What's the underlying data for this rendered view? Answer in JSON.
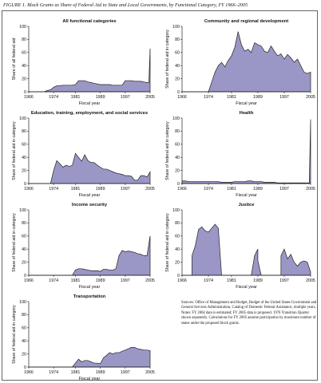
{
  "figure": {
    "title": "FIGURE 1. Block Grants as Share of Federal Aid to State and Local Governments, by Functional Category, FY 1966–2005",
    "note": "Sources: Office of Management and Budget, Budget of the United States Government and General Services Administration, Catalog of Domestic Federal Assistance, multiple years. Notes: FY 2004 data is estimated; FY 2005 data is proposed. 1976 Transition Quarter shown separately. Calculations for FY 2005 assume participation by maximum number of states under the proposed block grants."
  },
  "style": {
    "fill": "#9a97c6",
    "stroke": "#222222"
  },
  "chart_data": [
    {
      "type": "area",
      "title": "All functional categories",
      "xlabel": "Fiscal year",
      "ylabel": "Share of all federal aid",
      "xlim": [
        1966,
        2005
      ],
      "ylim": [
        0,
        100
      ],
      "xticks": [
        1966,
        1974,
        1981,
        1989,
        1997,
        2005
      ],
      "yticks": [
        0,
        20,
        40,
        60,
        80,
        100
      ],
      "x": [
        1966,
        1967,
        1968,
        1969,
        1970,
        1971,
        1972,
        1973,
        1974,
        1975,
        1976,
        1977,
        1978,
        1979,
        1980,
        1981,
        1982,
        1983,
        1984,
        1985,
        1986,
        1987,
        1988,
        1989,
        1990,
        1991,
        1992,
        1993,
        1994,
        1995,
        1996,
        1997,
        1998,
        1999,
        2000,
        2001,
        2002,
        2003,
        2004,
        2004.6,
        2005
      ],
      "values": [
        0,
        0,
        0,
        0,
        0,
        0,
        2,
        3,
        7,
        9,
        9,
        10,
        10,
        10,
        10,
        11,
        17,
        17,
        17,
        15,
        14,
        13,
        12,
        11,
        11,
        11,
        11,
        10,
        10,
        10,
        10,
        17,
        17,
        17,
        16,
        16,
        16,
        15,
        14,
        14,
        66
      ]
    },
    {
      "type": "area",
      "title": "Community and regional development",
      "xlabel": "Fiscal year",
      "ylabel": "Share of federal aid in category",
      "xlim": [
        1966,
        2005
      ],
      "ylim": [
        0,
        100
      ],
      "xticks": [
        1966,
        1974,
        1981,
        1989,
        1997,
        2005
      ],
      "yticks": [
        0,
        20,
        40,
        60,
        80,
        100
      ],
      "x": [
        1966,
        1967,
        1968,
        1969,
        1970,
        1971,
        1972,
        1973,
        1974,
        1975,
        1976,
        1977,
        1978,
        1979,
        1980,
        1981,
        1982,
        1983,
        1984,
        1985,
        1986,
        1987,
        1988,
        1989,
        1990,
        1991,
        1992,
        1993,
        1994,
        1995,
        1996,
        1997,
        1998,
        1999,
        2000,
        2001,
        2002,
        2003,
        2004,
        2005
      ],
      "values": [
        0,
        0,
        0,
        0,
        0,
        0,
        0,
        0,
        0,
        15,
        30,
        40,
        45,
        38,
        48,
        55,
        68,
        92,
        72,
        62,
        65,
        60,
        75,
        72,
        70,
        62,
        60,
        70,
        62,
        55,
        58,
        50,
        57,
        52,
        45,
        50,
        40,
        30,
        28,
        30
      ]
    },
    {
      "type": "area",
      "title": "Education, training, employment, and social services",
      "xlabel": "Fiscal year",
      "ylabel": "Share of federal aid in category",
      "xlim": [
        1966,
        2005
      ],
      "ylim": [
        0,
        100
      ],
      "xticks": [
        1966,
        1974,
        1981,
        1989,
        1997,
        2005
      ],
      "yticks": [
        0,
        20,
        40,
        60,
        80,
        100
      ],
      "x": [
        1966,
        1967,
        1968,
        1969,
        1970,
        1971,
        1972,
        1973,
        1974,
        1975,
        1976,
        1977,
        1978,
        1979,
        1980,
        1981,
        1982,
        1983,
        1984,
        1985,
        1986,
        1987,
        1988,
        1989,
        1990,
        1991,
        1992,
        1993,
        1994,
        1995,
        1996,
        1997,
        1998,
        1999,
        2000,
        2001,
        2002,
        2003,
        2004,
        2005
      ],
      "values": [
        0,
        0,
        0,
        0,
        0,
        0,
        0,
        0,
        20,
        35,
        30,
        25,
        28,
        26,
        28,
        46,
        40,
        34,
        44,
        35,
        32,
        32,
        28,
        25,
        22,
        22,
        20,
        18,
        16,
        15,
        14,
        12,
        12,
        11,
        5,
        5,
        12,
        12,
        10,
        18
      ]
    },
    {
      "type": "area",
      "title": "Health",
      "xlabel": "Fiscal year",
      "ylabel": "Share of federal aid in category",
      "xlim": [
        1966,
        2005
      ],
      "ylim": [
        0,
        100
      ],
      "xticks": [
        1966,
        1974,
        1981,
        1989,
        1997,
        2005
      ],
      "yticks": [
        0,
        20,
        40,
        60,
        80,
        100
      ],
      "x": [
        1966,
        1967,
        1968,
        1969,
        1970,
        1971,
        1972,
        1973,
        1974,
        1975,
        1976,
        1977,
        1978,
        1979,
        1980,
        1981,
        1982,
        1983,
        1984,
        1985,
        1986,
        1987,
        1988,
        1989,
        1990,
        1991,
        1992,
        1993,
        1994,
        1995,
        1996,
        1997,
        1998,
        1999,
        2000,
        2001,
        2002,
        2003,
        2004,
        2004.6,
        2005
      ],
      "values": [
        4,
        4,
        3,
        3,
        3,
        3,
        3,
        3,
        3,
        3,
        3,
        3,
        2,
        2,
        2,
        2,
        3,
        3,
        3,
        3,
        4,
        4,
        3,
        3,
        3,
        2,
        2,
        2,
        2,
        1,
        1,
        1,
        1,
        1,
        1,
        1,
        1,
        1,
        1,
        1,
        98
      ]
    },
    {
      "type": "area",
      "title": "Income security",
      "xlabel": "Fiscal year",
      "ylabel": "Share of federal aid in category",
      "xlim": [
        1966,
        2005
      ],
      "ylim": [
        0,
        100
      ],
      "xticks": [
        1966,
        1974,
        1981,
        1989,
        1997,
        2005
      ],
      "yticks": [
        0,
        20,
        40,
        60,
        80,
        100
      ],
      "x": [
        1966,
        1967,
        1968,
        1969,
        1970,
        1971,
        1972,
        1973,
        1974,
        1975,
        1976,
        1977,
        1978,
        1979,
        1980,
        1981,
        1982,
        1983,
        1984,
        1985,
        1986,
        1987,
        1988,
        1989,
        1990,
        1991,
        1992,
        1993,
        1994,
        1995,
        1996,
        1997,
        1998,
        1999,
        2000,
        2001,
        2002,
        2003,
        2004,
        2005
      ],
      "values": [
        0,
        0,
        0,
        0,
        0,
        0,
        0,
        0,
        0,
        0,
        0,
        0,
        0,
        0,
        0,
        8,
        10,
        10,
        9,
        8,
        7,
        7,
        7,
        6,
        9,
        9,
        8,
        8,
        10,
        30,
        38,
        36,
        37,
        36,
        35,
        33,
        32,
        30,
        30,
        60
      ]
    },
    {
      "type": "area",
      "title": "Justice",
      "xlabel": "Fiscal year",
      "ylabel": "Share of federal aid in category",
      "xlim": [
        1966,
        2005
      ],
      "ylim": [
        0,
        100
      ],
      "xticks": [
        1966,
        1974,
        1981,
        1989,
        1997,
        2005
      ],
      "yticks": [
        0,
        20,
        40,
        60,
        80,
        100
      ],
      "x": [
        1966,
        1967,
        1968,
        1969,
        1969.01,
        1970,
        1971,
        1972,
        1973,
        1974,
        1975,
        1976,
        1977,
        1977.99,
        1978,
        1979,
        1980,
        1981,
        1982,
        1983,
        1984,
        1985,
        1986,
        1987,
        1988,
        1988.99,
        1989,
        1990,
        1991,
        1992,
        1993,
        1994,
        1995,
        1996,
        1996.01,
        1997,
        1998,
        1999,
        2000,
        2001,
        2002,
        2003,
        2004,
        2005
      ],
      "values": [
        0,
        0,
        0,
        0,
        30,
        45,
        70,
        74,
        68,
        66,
        72,
        78,
        72,
        0,
        0,
        0,
        0,
        0,
        0,
        0,
        0,
        0,
        0,
        0,
        30,
        40,
        22,
        0,
        0,
        0,
        0,
        0,
        0,
        0,
        30,
        40,
        25,
        32,
        20,
        14,
        20,
        22,
        20,
        5
      ]
    },
    {
      "type": "area",
      "title": "Transportation",
      "xlabel": "Fiscal year",
      "ylabel": "Share of federal aid in category",
      "xlim": [
        1966,
        2005
      ],
      "ylim": [
        0,
        100
      ],
      "xticks": [
        1966,
        1974,
        1981,
        1989,
        1997,
        2005
      ],
      "yticks": [
        0,
        20,
        40,
        60,
        80,
        100
      ],
      "x": [
        1966,
        1967,
        1968,
        1969,
        1970,
        1971,
        1972,
        1973,
        1974,
        1975,
        1976,
        1977,
        1978,
        1979,
        1980,
        1981,
        1982,
        1983,
        1984,
        1985,
        1986,
        1987,
        1988,
        1989,
        1990,
        1991,
        1992,
        1993,
        1994,
        1995,
        1996,
        1997,
        1998,
        1999,
        2000,
        2001,
        2002,
        2003,
        2004,
        2005
      ],
      "values": [
        0,
        0,
        0,
        0,
        0,
        0,
        0,
        0,
        0,
        0,
        0,
        0,
        0,
        0,
        0,
        6,
        12,
        8,
        10,
        10,
        8,
        6,
        6,
        5,
        14,
        18,
        22,
        20,
        22,
        22,
        24,
        26,
        28,
        30,
        30,
        28,
        27,
        26,
        26,
        25
      ]
    }
  ]
}
